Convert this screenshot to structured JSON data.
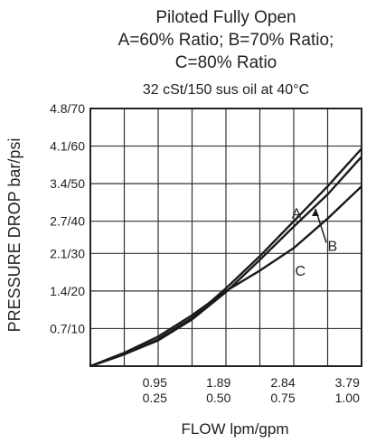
{
  "chart_data": {
    "type": "line",
    "title_lines": [
      "Piloted Fully Open",
      "A=60% Ratio; B=70% Ratio;",
      "C=80% Ratio"
    ],
    "subtitle": "32 cSt/150 sus oil at 40°C",
    "xlabel": "FLOW lpm/gpm",
    "ylabel": "PRESSURE DROP bar/psi",
    "xlim": [
      0,
      4.0
    ],
    "ylim": [
      0,
      4.8
    ],
    "grid": true,
    "x_ticks": [
      {
        "value": 0.95,
        "label_top": "0.95",
        "label_bottom": "0.25"
      },
      {
        "value": 1.89,
        "label_top": "1.89",
        "label_bottom": "0.50"
      },
      {
        "value": 2.84,
        "label_top": "2.84",
        "label_bottom": "0.75"
      },
      {
        "value": 3.79,
        "label_top": "3.79",
        "label_bottom": "1.00"
      }
    ],
    "y_ticks": [
      {
        "value": 0.7,
        "label": "0.7/10"
      },
      {
        "value": 1.4,
        "label": "1.4/20"
      },
      {
        "value": 2.1,
        "label": "2.1/30"
      },
      {
        "value": 2.7,
        "label": "2.7/40"
      },
      {
        "value": 3.4,
        "label": "3.4/50"
      },
      {
        "value": 4.1,
        "label": "4.1/60"
      },
      {
        "value": 4.8,
        "label": "4.8/70"
      }
    ],
    "series": [
      {
        "name": "A",
        "x": [
          0,
          0.5,
          1.0,
          1.5,
          2.0,
          2.5,
          3.0,
          3.5,
          4.0
        ],
        "y": [
          0,
          0.22,
          0.5,
          0.9,
          1.45,
          2.05,
          2.7,
          3.35,
          4.05
        ]
      },
      {
        "name": "B",
        "x": [
          0,
          0.5,
          1.0,
          1.5,
          2.0,
          2.5,
          3.0,
          3.5,
          4.0
        ],
        "y": [
          0,
          0.22,
          0.48,
          0.87,
          1.38,
          1.98,
          2.6,
          3.2,
          3.9
        ]
      },
      {
        "name": "C",
        "x": [
          0,
          0.5,
          1.0,
          1.5,
          2.0,
          2.5,
          3.0,
          3.5,
          4.0
        ],
        "y": [
          0,
          0.25,
          0.55,
          0.95,
          1.4,
          1.78,
          2.2,
          2.75,
          3.35
        ]
      }
    ]
  }
}
